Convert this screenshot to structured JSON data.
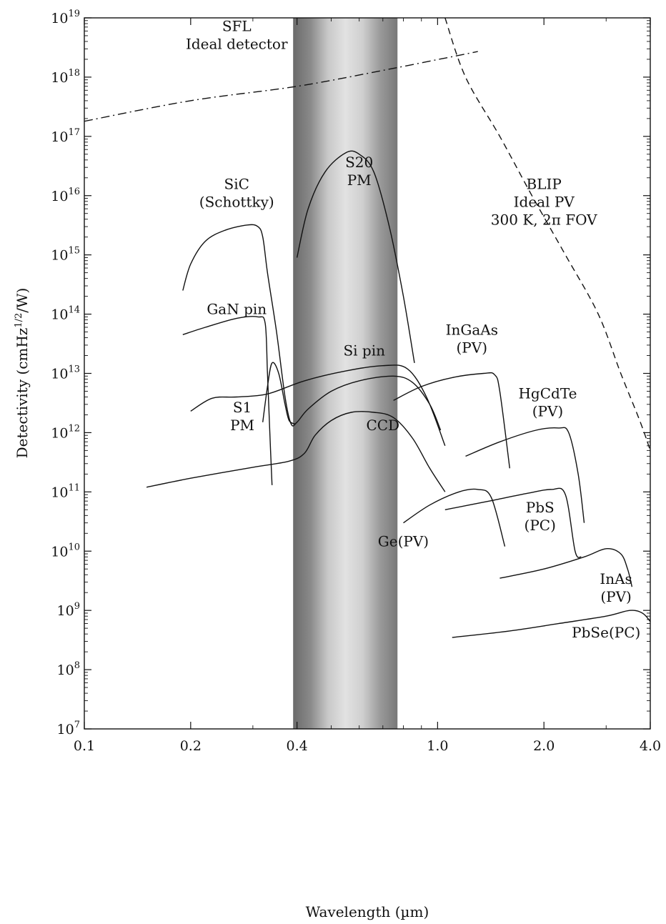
{
  "chart_data": {
    "type": "line",
    "title": "",
    "xlabel": "Wavelength (µm)",
    "ylabel_parts": [
      "Detectivity (cmHz",
      "1/2",
      "/W)"
    ],
    "x_scale": "log",
    "y_scale": "log",
    "xlim": [
      0.1,
      4.0
    ],
    "ylim": [
      10000000.0,
      1e+19
    ],
    "x_ticks": [
      {
        "value": 0.1,
        "label": "0.1"
      },
      {
        "value": 0.2,
        "label": "0.2"
      },
      {
        "value": 0.4,
        "label": "0.4"
      },
      {
        "value": 1.0,
        "label": "1.0"
      },
      {
        "value": 2.0,
        "label": "2.0"
      },
      {
        "value": 4.0,
        "label": "4.0"
      }
    ],
    "y_ticks": [
      {
        "exp": 7,
        "base": "10",
        "sup": "7"
      },
      {
        "exp": 8,
        "base": "10",
        "sup": "8"
      },
      {
        "exp": 9,
        "base": "10",
        "sup": "9"
      },
      {
        "exp": 10,
        "base": "10",
        "sup": "10"
      },
      {
        "exp": 11,
        "base": "10",
        "sup": "11"
      },
      {
        "exp": 12,
        "base": "10",
        "sup": "12"
      },
      {
        "exp": 13,
        "base": "10",
        "sup": "13"
      },
      {
        "exp": 14,
        "base": "10",
        "sup": "14"
      },
      {
        "exp": 15,
        "base": "10",
        "sup": "15"
      },
      {
        "exp": 16,
        "base": "10",
        "sup": "16"
      },
      {
        "exp": 17,
        "base": "10",
        "sup": "17"
      },
      {
        "exp": 18,
        "base": "10",
        "sup": "18"
      },
      {
        "exp": 19,
        "base": "10",
        "sup": "19"
      }
    ],
    "visible_band": {
      "x_start": 0.39,
      "x_end": 0.77,
      "gradient": [
        "#6a6a6a",
        "#8a8a8a",
        "#c8c8c8",
        "#e2e2e2",
        "#cfcfcf",
        "#9a9a9a",
        "#787878"
      ]
    },
    "series": [
      {
        "key": "sfl",
        "style": "dashdot",
        "points": [
          [
            0.1,
            1.8e+17
          ],
          [
            0.2,
            4e+17
          ],
          [
            0.4,
            7e+17
          ],
          [
            0.7,
            1.3e+18
          ],
          [
            1.3,
            2.7e+18
          ]
        ]
      },
      {
        "key": "blip",
        "style": "dashed",
        "points": [
          [
            1.05,
            1e+19
          ],
          [
            1.2,
            1e+18
          ],
          [
            1.5,
            1e+17
          ],
          [
            1.85,
            1e+16
          ],
          [
            2.3,
            1000000000000000.0
          ],
          [
            2.85,
            100000000000000.0
          ],
          [
            3.3,
            10000000000000.0
          ],
          [
            3.75,
            1500000000000.0
          ],
          [
            4.0,
            500000000000.0
          ]
        ]
      },
      {
        "key": "sic",
        "style": "solid",
        "points": [
          [
            0.19,
            250000000000000.0
          ],
          [
            0.2,
            700000000000000.0
          ],
          [
            0.22,
            1700000000000000.0
          ],
          [
            0.25,
            2600000000000000.0
          ],
          [
            0.29,
            3200000000000000.0
          ],
          [
            0.31,
            3000000000000000.0
          ],
          [
            0.32,
            2000000000000000.0
          ],
          [
            0.33,
            500000000000000.0
          ],
          [
            0.35,
            50000000000000.0
          ],
          [
            0.37,
            4000000000000.0
          ],
          [
            0.385,
            1400000000000.0
          ],
          [
            0.4,
            1500000000000.0
          ],
          [
            0.43,
            2500000000000.0
          ],
          [
            0.5,
            5000000000000.0
          ],
          [
            0.6,
            7500000000000.0
          ],
          [
            0.75,
            9000000000000.0
          ],
          [
            0.85,
            7000000000000.0
          ],
          [
            0.95,
            3000000000000.0
          ],
          [
            1.02,
            1100000000000.0
          ]
        ]
      },
      {
        "key": "s20",
        "style": "solid",
        "points": [
          [
            0.4,
            900000000000000.0
          ],
          [
            0.43,
            6000000000000000.0
          ],
          [
            0.48,
            2.5e+16
          ],
          [
            0.55,
            5.3e+16
          ],
          [
            0.6,
            5e+16
          ],
          [
            0.66,
            2.5e+16
          ],
          [
            0.73,
            3000000000000000.0
          ],
          [
            0.8,
            200000000000000.0
          ],
          [
            0.86,
            15000000000000.0
          ]
        ]
      },
      {
        "key": "gan",
        "style": "solid",
        "points": [
          [
            0.19,
            45000000000000.0
          ],
          [
            0.22,
            60000000000000.0
          ],
          [
            0.27,
            85000000000000.0
          ],
          [
            0.31,
            90000000000000.0
          ],
          [
            0.325,
            70000000000000.0
          ],
          [
            0.33,
            10000000000000.0
          ],
          [
            0.335,
            1000000000000.0
          ],
          [
            0.34,
            130000000000.0
          ]
        ]
      },
      {
        "key": "s1",
        "style": "solid",
        "points": [
          [
            0.32,
            1500000000000.0
          ],
          [
            0.33,
            6000000000000.0
          ],
          [
            0.34,
            15000000000000.0
          ],
          [
            0.355,
            10000000000000.0
          ],
          [
            0.37,
            3000000000000.0
          ],
          [
            0.38,
            1600000000000.0
          ],
          [
            0.395,
            1400000000000.0
          ]
        ]
      },
      {
        "key": "sipin",
        "style": "solid",
        "points": [
          [
            0.2,
            2300000000000.0
          ],
          [
            0.23,
            3800000000000.0
          ],
          [
            0.27,
            4000000000000.0
          ],
          [
            0.33,
            4500000000000.0
          ],
          [
            0.42,
            7500000000000.0
          ],
          [
            0.55,
            11000000000000.0
          ],
          [
            0.7,
            13500000000000.0
          ],
          [
            0.82,
            12000000000000.0
          ],
          [
            0.93,
            4000000000000.0
          ],
          [
            1.05,
            600000000000.0
          ]
        ]
      },
      {
        "key": "ccd",
        "style": "solid",
        "points": [
          [
            0.15,
            120000000000.0
          ],
          [
            0.2,
            170000000000.0
          ],
          [
            0.3,
            260000000000.0
          ],
          [
            0.38,
            330000000000.0
          ],
          [
            0.42,
            450000000000.0
          ],
          [
            0.45,
            900000000000.0
          ],
          [
            0.5,
            1600000000000.0
          ],
          [
            0.57,
            2200000000000.0
          ],
          [
            0.66,
            2200000000000.0
          ],
          [
            0.75,
            1800000000000.0
          ],
          [
            0.85,
            800000000000.0
          ],
          [
            0.95,
            250000000000.0
          ],
          [
            1.05,
            100000000000.0
          ]
        ]
      },
      {
        "key": "ingaas",
        "style": "solid",
        "points": [
          [
            0.75,
            3500000000000.0
          ],
          [
            0.9,
            6000000000000.0
          ],
          [
            1.1,
            8500000000000.0
          ],
          [
            1.35,
            10000000000000.0
          ],
          [
            1.45,
            95000000000000.0
          ],
          [
            1.5,
            5000000000000.0
          ],
          [
            1.6,
            250000000000.0
          ]
        ],
        "override_mid": true
      },
      {
        "key": "hgcdte",
        "style": "solid",
        "points": [
          [
            1.2,
            400000000000.0
          ],
          [
            1.5,
            700000000000.0
          ],
          [
            1.9,
            1100000000000.0
          ],
          [
            2.2,
            1200000000000.0
          ],
          [
            2.35,
            1000000000000.0
          ],
          [
            2.5,
            200000000000.0
          ],
          [
            2.6,
            30000000000.0
          ]
        ]
      },
      {
        "key": "ge",
        "style": "solid",
        "points": [
          [
            0.8,
            30000000000.0
          ],
          [
            0.95,
            60000000000.0
          ],
          [
            1.15,
            100000000000.0
          ],
          [
            1.3,
            110000000000.0
          ],
          [
            1.42,
            80000000000.0
          ],
          [
            1.55,
            12000000000.0
          ]
        ]
      },
      {
        "key": "pbs",
        "style": "solid",
        "points": [
          [
            1.05,
            50000000000.0
          ],
          [
            1.4,
            70000000000.0
          ],
          [
            1.8,
            95000000000.0
          ],
          [
            2.1,
            110000000000.0
          ],
          [
            2.3,
            90000000000.0
          ],
          [
            2.45,
            10000000000.0
          ],
          [
            2.55,
            8000000000.0
          ]
        ]
      },
      {
        "key": "inas",
        "style": "solid",
        "points": [
          [
            1.5,
            3500000000.0
          ],
          [
            2.0,
            5000000000.0
          ],
          [
            2.6,
            8000000000.0
          ],
          [
            3.0,
            11000000000.0
          ],
          [
            3.3,
            9000000000.0
          ],
          [
            3.45,
            5000000000.0
          ],
          [
            3.55,
            2500000000.0
          ]
        ]
      },
      {
        "key": "pbse",
        "style": "solid",
        "points": [
          [
            1.1,
            350000000.0
          ],
          [
            1.6,
            450000000.0
          ],
          [
            2.2,
            600000000.0
          ],
          [
            3.0,
            800000000.0
          ],
          [
            3.5,
            1000000000.0
          ],
          [
            3.8,
            900000000.0
          ],
          [
            4.0,
            650000000.0
          ]
        ]
      }
    ],
    "annotations": [
      {
        "key": "sfl",
        "lines": [
          "SFL",
          "Ideal detector"
        ],
        "x": 0.27,
        "y": 6e+18
      },
      {
        "key": "s20",
        "lines": [
          "S20",
          "PM"
        ],
        "x": 0.6,
        "y": 3e+16
      },
      {
        "key": "sic",
        "lines": [
          "SiC",
          "(Schottky)"
        ],
        "x": 0.27,
        "y": 1.3e+16
      },
      {
        "key": "blip",
        "lines": [
          "BLIP",
          "Ideal PV",
          "300 K, 2π FOV"
        ],
        "x": 2.0,
        "y": 1.3e+16
      },
      {
        "key": "gan",
        "lines": [
          "GaN pin"
        ],
        "x": 0.27,
        "y": 100000000000000.0
      },
      {
        "key": "sipin",
        "lines": [
          "Si pin"
        ],
        "x": 0.62,
        "y": 20000000000000.0
      },
      {
        "key": "ingaas",
        "lines": [
          "InGaAs",
          "(PV)"
        ],
        "x": 1.25,
        "y": 45000000000000.0
      },
      {
        "key": "s1",
        "lines": [
          "S1",
          "PM"
        ],
        "x": 0.28,
        "y": 2200000000000.0
      },
      {
        "key": "ccd",
        "lines": [
          "CCD"
        ],
        "x": 0.7,
        "y": 1100000000000.0
      },
      {
        "key": "hgcdte",
        "lines": [
          "HgCdTe",
          "(PV)"
        ],
        "x": 2.05,
        "y": 3800000000000.0
      },
      {
        "key": "pbs",
        "lines": [
          "PbS",
          "(PC)"
        ],
        "x": 1.95,
        "y": 45000000000.0
      },
      {
        "key": "ge",
        "lines": [
          "Ge(PV)"
        ],
        "x": 0.8,
        "y": 12000000000.0
      },
      {
        "key": "inas",
        "lines": [
          "InAs",
          "(PV)"
        ],
        "x": 3.2,
        "y": 2800000000.0
      },
      {
        "key": "pbse",
        "lines": [
          "PbSe(PC)"
        ],
        "x": 3.0,
        "y": 350000000.0
      }
    ]
  }
}
